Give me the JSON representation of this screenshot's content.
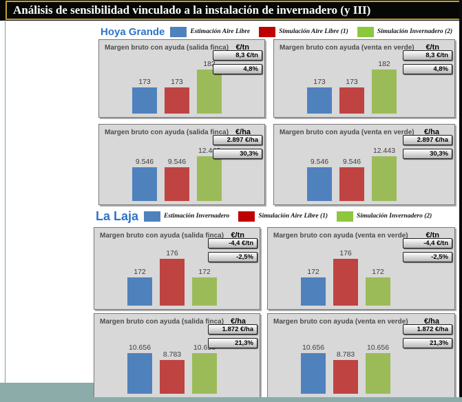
{
  "title": "Análisis de sensibilidad vinculado a la instalación de invernadero (y III)",
  "bar_colors": [
    "#4F81BD",
    "#BF4340",
    "#9BBB59"
  ],
  "sections": [
    {
      "name": "Hoya Grande",
      "legend": [
        {
          "label": "Estimación Aire Libre",
          "color": "#4F81BD"
        },
        {
          "label": "Simulación Aire Libre (1)",
          "color": "#C00000"
        },
        {
          "label": "Simulación Invernadero (2)",
          "color": "#8DC63F"
        }
      ],
      "panels": [
        {
          "title": "Margen bruto con ayuda (salida finca)",
          "unit": "€/tn",
          "callouts": [
            "8,3 €/tn",
            "4,8%"
          ],
          "chart": 0
        },
        {
          "title": "Margen bruto con ayuda (venta en verde)",
          "unit": "€/tn",
          "callouts": [
            "8,3 €/tn",
            "4,8%"
          ],
          "chart": 1
        },
        {
          "title": "Margen bruto con ayuda (salida finca)",
          "unit": "€/ha",
          "callouts": [
            "2.897 €/ha",
            "30,3%"
          ],
          "chart": 2
        },
        {
          "title": "Margen bruto con ayuda (venta en verde)",
          "unit": "€/ha",
          "callouts": [
            "2.897 €/ha",
            "30,3%"
          ],
          "chart": 3
        }
      ]
    },
    {
      "name": "La Laja",
      "legend": [
        {
          "label": "Estimación Invernadero",
          "color": "#4F81BD"
        },
        {
          "label": "Simulación Aire Libre (1)",
          "color": "#C00000"
        },
        {
          "label": "Simulación Invernadero (2)",
          "color": "#8DC63F"
        }
      ],
      "panels": [
        {
          "title": "Margen bruto con ayuda (salida finca)",
          "unit": "€/tn",
          "callouts": [
            "-4,4 €/tn",
            "-2,5%"
          ],
          "chart": 4
        },
        {
          "title": "Margen bruto con ayuda (venta en verde)",
          "unit": "€/tn",
          "callouts": [
            "-4,4 €/tn",
            "-2,5%"
          ],
          "chart": 5
        },
        {
          "title": "Margen bruto con ayuda (salida finca)",
          "unit": "€/ha",
          "callouts": [
            "1.872 €/ha",
            "21,3%"
          ],
          "chart": 6
        },
        {
          "title": "Margen bruto con ayuda (venta en verde)",
          "unit": "€/ha",
          "callouts": [
            "1.872 €/ha",
            "21,3%"
          ],
          "chart": 7
        }
      ]
    }
  ],
  "chart_data": [
    {
      "type": "bar",
      "group": "Hoya Grande",
      "title": "Margen bruto con ayuda (salida finca)",
      "unit": "€/tn",
      "categories": [
        "Estimación Aire Libre",
        "Simulación Aire Libre (1)",
        "Simulación Invernadero (2)"
      ],
      "values": [
        173,
        173,
        182
      ],
      "labels": [
        "173",
        "173",
        "182"
      ],
      "annotations": [
        "8,3 €/tn",
        "4,8%"
      ],
      "ylim": [
        160,
        186
      ],
      "grid": false,
      "legend_position": "top"
    },
    {
      "type": "bar",
      "group": "Hoya Grande",
      "title": "Margen bruto con ayuda (venta en verde)",
      "unit": "€/tn",
      "categories": [
        "Estimación Aire Libre",
        "Simulación Aire Libre (1)",
        "Simulación Invernadero (2)"
      ],
      "values": [
        173,
        173,
        182
      ],
      "labels": [
        "173",
        "173",
        "182"
      ],
      "annotations": [
        "8,3 €/tn",
        "4,8%"
      ],
      "ylim": [
        160,
        186
      ],
      "grid": false,
      "legend_position": "top"
    },
    {
      "type": "bar",
      "group": "Hoya Grande",
      "title": "Margen bruto con ayuda (salida finca)",
      "unit": "€/ha",
      "categories": [
        "Estimación Aire Libre",
        "Simulación Aire Libre (1)",
        "Simulación Invernadero (2)"
      ],
      "values": [
        9546,
        9546,
        12443
      ],
      "labels": [
        "9.546",
        "9.546",
        "12.443"
      ],
      "annotations": [
        "2.897 €/ha",
        "30,3%"
      ],
      "ylim": [
        1000,
        15000
      ],
      "grid": false,
      "legend_position": "top"
    },
    {
      "type": "bar",
      "group": "Hoya Grande",
      "title": "Margen bruto con ayuda (venta en verde)",
      "unit": "€/ha",
      "categories": [
        "Estimación Aire Libre",
        "Simulación Aire Libre (1)",
        "Simulación Invernadero (2)"
      ],
      "values": [
        9546,
        9546,
        12443
      ],
      "labels": [
        "9.546",
        "9.546",
        "12.443"
      ],
      "annotations": [
        "2.897 €/ha",
        "30,3%"
      ],
      "ylim": [
        1000,
        15000
      ],
      "grid": false,
      "legend_position": "top"
    },
    {
      "type": "bar",
      "group": "La Laja",
      "title": "Margen bruto con ayuda (salida finca)",
      "unit": "€/tn",
      "categories": [
        "Estimación Invernadero",
        "Simulación Aire Libre (1)",
        "Simulación Invernadero (2)"
      ],
      "values": [
        172,
        176,
        172
      ],
      "labels": [
        "172",
        "176",
        "172"
      ],
      "annotations": [
        "-4,4 €/tn",
        "-2,5%"
      ],
      "ylim": [
        166,
        178
      ],
      "grid": false,
      "legend_position": "top"
    },
    {
      "type": "bar",
      "group": "La Laja",
      "title": "Margen bruto con ayuda (venta en verde)",
      "unit": "€/tn",
      "categories": [
        "Estimación Invernadero",
        "Simulación Aire Libre (1)",
        "Simulación Invernadero (2)"
      ],
      "values": [
        172,
        176,
        172
      ],
      "labels": [
        "172",
        "176",
        "172"
      ],
      "annotations": [
        "-4,4 €/tn",
        "-2,5%"
      ],
      "ylim": [
        166,
        178
      ],
      "grid": false,
      "legend_position": "top"
    },
    {
      "type": "bar",
      "group": "La Laja",
      "title": "Margen bruto con ayuda (salida finca)",
      "unit": "€/ha",
      "categories": [
        "Estimación Invernadero",
        "Simulación Aire Libre (1)",
        "Simulación Invernadero (2)"
      ],
      "values": [
        10656,
        8783,
        10656
      ],
      "labels": [
        "10.656",
        "8.783",
        "10.656"
      ],
      "annotations": [
        "1.872 €/ha",
        "21,3%"
      ],
      "ylim": [
        0,
        15300
      ],
      "grid": false,
      "legend_position": "top"
    },
    {
      "type": "bar",
      "group": "La Laja",
      "title": "Margen bruto con ayuda (venta en verde)",
      "unit": "€/ha",
      "categories": [
        "Estimación Invernadero",
        "Simulación Aire Libre (1)",
        "Simulación Invernadero (2)"
      ],
      "values": [
        10656,
        8783,
        10656
      ],
      "labels": [
        "10.656",
        "8.783",
        "10.656"
      ],
      "annotations": [
        "1.872 €/ha",
        "21,3%"
      ],
      "ylim": [
        0,
        15300
      ],
      "grid": false,
      "legend_position": "top"
    }
  ]
}
